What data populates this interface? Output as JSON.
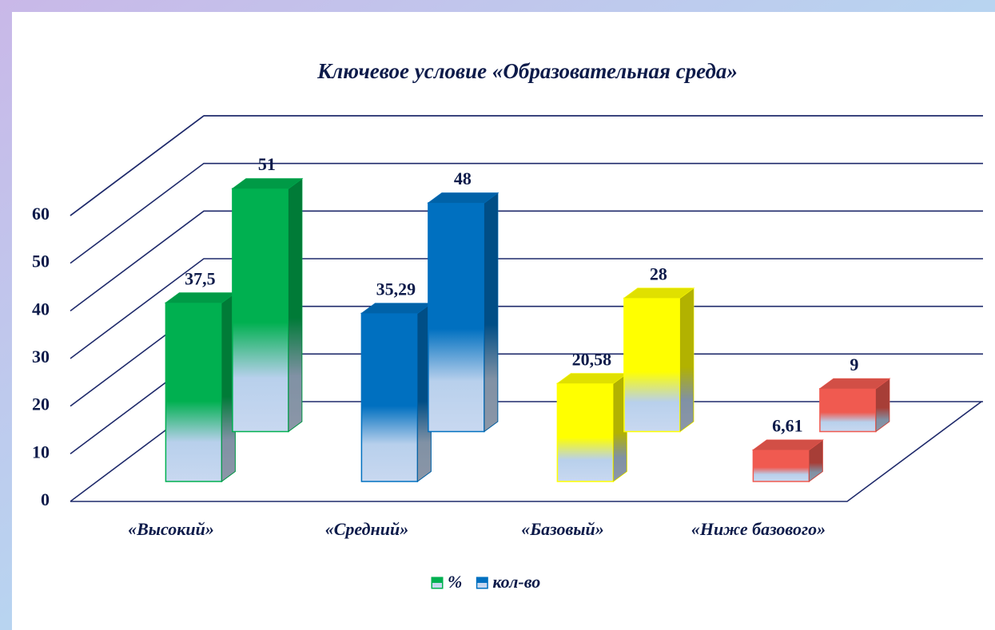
{
  "chart_data": {
    "type": "bar3d",
    "title": "Ключевое условие «Образовательная среда»",
    "categories": [
      "«Высокий»",
      "«Средний»",
      "«Базовый»",
      "«Ниже базового»"
    ],
    "category_colors": [
      "#00b050",
      "#0070c0",
      "#ffff00",
      "#f05a50"
    ],
    "series": [
      {
        "name": "%",
        "color": "#00b050",
        "values": [
          37.5,
          35.29,
          20.58,
          6.61
        ],
        "value_labels": [
          "37,5",
          "35,29",
          "20,58",
          "6,61"
        ]
      },
      {
        "name": "кол-во",
        "color": "#0070c0",
        "values": [
          51,
          48,
          28,
          9
        ]
      }
    ],
    "ylim": [
      0,
      60
    ],
    "yticks": [
      0,
      10,
      20,
      30,
      40,
      50,
      60
    ],
    "grid": true,
    "legend": "bottom"
  }
}
